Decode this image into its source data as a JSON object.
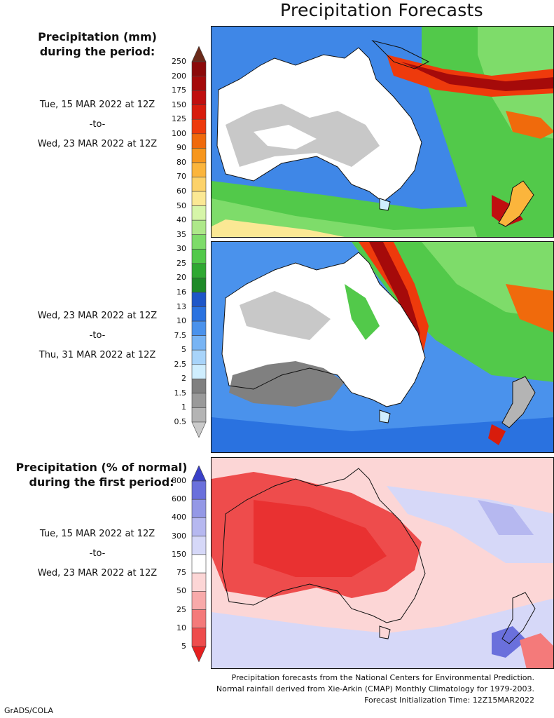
{
  "title": "Precipitation Forecasts",
  "panels": {
    "mm_title_line1": "Precipitation (mm)",
    "mm_title_line2": "during the period:",
    "period1": {
      "start": "Tue, 15 MAR 2022 at 12Z",
      "sep": "-to-",
      "end": "Wed, 23 MAR 2022 at 12Z"
    },
    "period2": {
      "start": "Wed, 23 MAR 2022 at 12Z",
      "sep": "-to-",
      "end": "Thu, 31 MAR 2022 at 12Z"
    },
    "pct_title_line1": "Precipitation (% of normal)",
    "pct_title_line2": "during the first period:",
    "period3": {
      "start": "Tue, 15 MAR 2022 at 12Z",
      "sep": "-to-",
      "end": "Wed, 23 MAR 2022 at 12Z"
    }
  },
  "colorbar_mm": {
    "labels": [
      "250",
      "200",
      "175",
      "150",
      "125",
      "100",
      "90",
      "80",
      "70",
      "60",
      "50",
      "40",
      "35",
      "30",
      "25",
      "20",
      "16",
      "13",
      "10",
      "7.5",
      "5",
      "2.5",
      "2",
      "1.5",
      "1",
      "0.5"
    ],
    "colors": [
      "#6b2a1a",
      "#8c0a0a",
      "#a50a0a",
      "#c00f0f",
      "#d81c0c",
      "#ee3a0c",
      "#f06a0c",
      "#f7961c",
      "#fbb53c",
      "#fcd26a",
      "#fbe894",
      "#d6f5a8",
      "#aee88a",
      "#7edc6a",
      "#52c94a",
      "#2fa832",
      "#1e8a28",
      "#1e56c8",
      "#2a72e0",
      "#4a92ec",
      "#78b4f4",
      "#a8d4fa",
      "#cfeefe",
      "#808080",
      "#9a9a9a",
      "#b4b4b4",
      "#cacaca"
    ]
  },
  "colorbar_pct": {
    "labels": [
      "800",
      "600",
      "400",
      "300",
      "150",
      "75",
      "50",
      "25",
      "10",
      "5"
    ],
    "colors": [
      "#3a40c8",
      "#6a70dc",
      "#9498e6",
      "#b6b8f0",
      "#d6d8f8",
      "#ffffff",
      "#fcd6d6",
      "#f8aaaa",
      "#f47a7a",
      "#ee4c4c",
      "#e62020"
    ]
  },
  "footer": {
    "line1": "Precipitation forecasts from the National Centers for Environmental Prediction.",
    "line2": "Normal rainfall derived from Xie-Arkin (CMAP) Monthly Climatology for 1979-2003.",
    "line3": "Forecast Initialization Time: 12Z15MAR2022"
  },
  "credit": "GrADS/COLA"
}
